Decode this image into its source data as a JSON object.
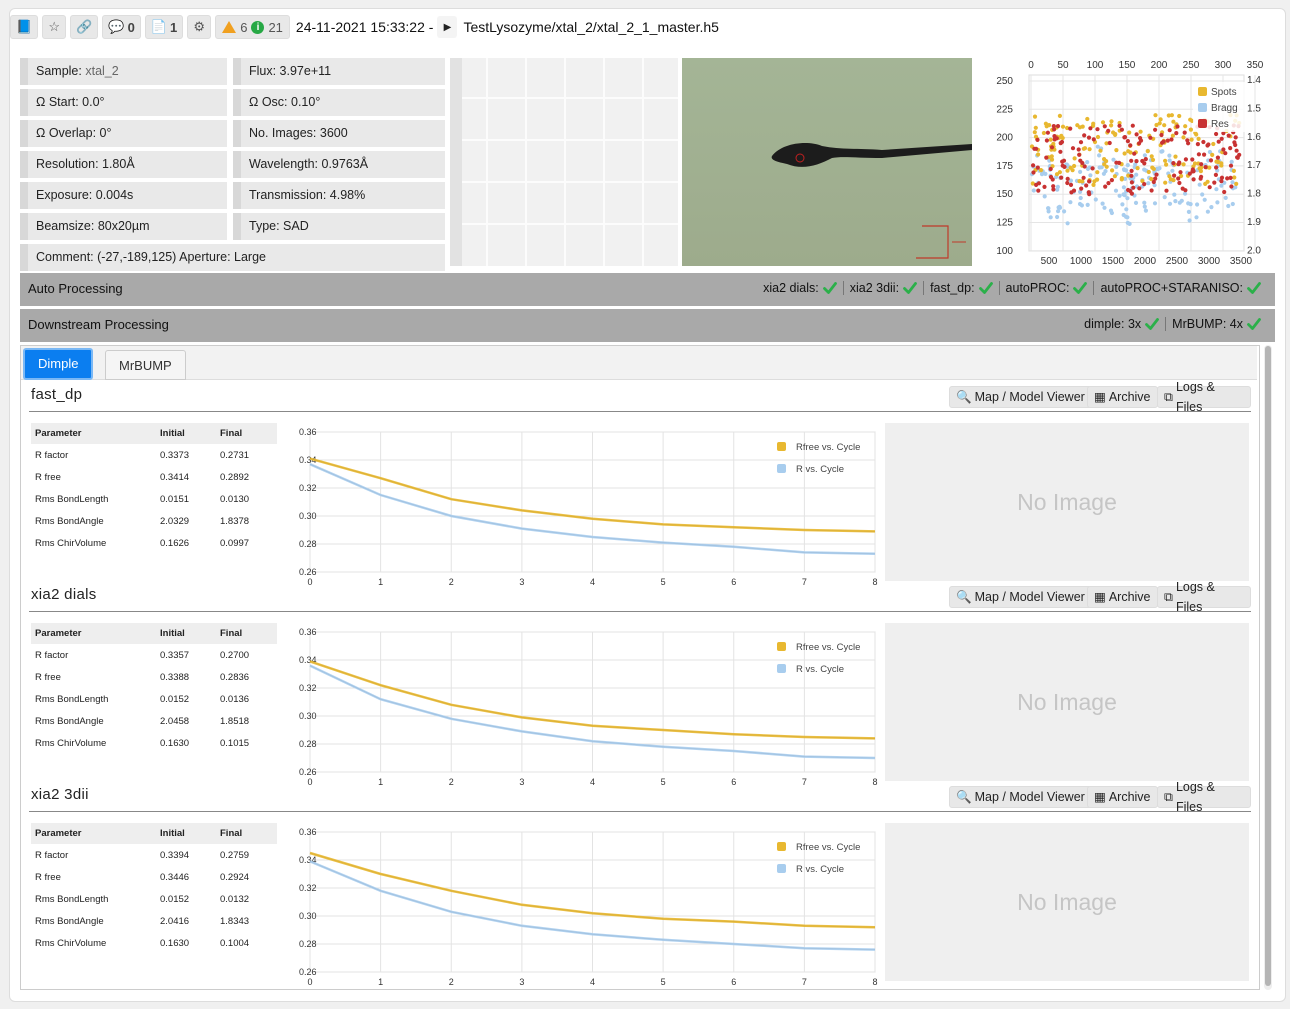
{
  "topbar": {
    "comments_count": "0",
    "files_count": "1",
    "warning_count": "6",
    "info_count": "21",
    "datetime": "24-11-2021 15:33:22 -",
    "path": "TestLysozyme/xtal_2/xtal_2_1_master.h5"
  },
  "info": {
    "sample_label": "Sample:",
    "sample_value": "xtal_2",
    "flux": "Flux: 3.97e+11",
    "omega_start": "Ω Start: 0.0°",
    "omega_osc": "Ω Osc: 0.10°",
    "omega_overlap": "Ω Overlap: 0°",
    "no_images": "No. Images: 3600",
    "resolution": "Resolution: 1.80Å",
    "wavelength": "Wavelength: 0.9763Å",
    "exposure": "Exposure: 0.004s",
    "transmission": "Transmission: 4.98%",
    "beamsize": "Beamsize: 80x20µm",
    "type": "Type: SAD",
    "comment": "Comment: (-27,-189,125) Aperture: Large"
  },
  "dc_plot": {
    "top_ticks": [
      "0",
      "50",
      "100",
      "150",
      "200",
      "250",
      "300",
      "350"
    ],
    "bottom_ticks": [
      "500",
      "1000",
      "1500",
      "2000",
      "2500",
      "3000",
      "3500"
    ],
    "left_ticks": [
      "250",
      "225",
      "200",
      "175",
      "150",
      "125",
      "100"
    ],
    "right_ticks": [
      "1.4",
      "1.5",
      "1.6",
      "1.7",
      "1.8",
      "1.9",
      "2.0"
    ],
    "legend": [
      "Spots",
      "Bragg",
      "Res"
    ],
    "colors": {
      "spots": "#e8b830",
      "bragg": "#a8cdee",
      "res": "#c83232"
    }
  },
  "auto_processing": {
    "label": "Auto Processing",
    "items": [
      "xia2 dials:",
      "xia2 3dii:",
      "fast_dp:",
      "autoPROC:",
      "autoPROC+STARANISO:"
    ]
  },
  "downstream": {
    "label": "Downstream Processing",
    "items": [
      "dimple: 3x",
      "MrBUMP: 4x"
    ]
  },
  "tabs": [
    "Dimple",
    "MrBUMP"
  ],
  "buttons": {
    "viewer": "Map / Model Viewer",
    "archive": "Archive",
    "logs": "Logs & Files"
  },
  "table_headers": [
    "Parameter",
    "Initial",
    "Final"
  ],
  "no_image": "No Image",
  "colors": {
    "rfree": "#e8b830",
    "r": "#a8cdee",
    "check": "#2bb04a",
    "tab_active": "#0b7ef0"
  },
  "sections": [
    {
      "title": "fast_dp",
      "rows": [
        [
          "R factor",
          "0.3373",
          "0.2731"
        ],
        [
          "R free",
          "0.3414",
          "0.2892"
        ],
        [
          "Rms BondLength",
          "0.0151",
          "0.0130"
        ],
        [
          "Rms BondAngle",
          "2.0329",
          "1.8378"
        ],
        [
          "Rms ChirVolume",
          "0.1626",
          "0.0997"
        ]
      ],
      "chart_data": {
        "type": "line",
        "x": [
          0,
          1,
          2,
          3,
          4,
          5,
          6,
          7,
          8
        ],
        "ylim": [
          0.26,
          0.36
        ],
        "yticks": [
          "0.36",
          "0.34",
          "0.32",
          "0.30",
          "0.28",
          "0.26"
        ],
        "xticks": [
          "0",
          "1",
          "2",
          "3",
          "4",
          "5",
          "6",
          "7",
          "8"
        ],
        "series": [
          {
            "name": "Rfree vs. Cycle",
            "values": [
              0.341,
              0.327,
              0.312,
              0.304,
              0.298,
              0.294,
              0.292,
              0.29,
              0.289
            ]
          },
          {
            "name": "R vs. Cycle",
            "values": [
              0.337,
              0.315,
              0.3,
              0.291,
              0.285,
              0.281,
              0.278,
              0.274,
              0.273
            ]
          }
        ]
      }
    },
    {
      "title": "xia2 dials",
      "rows": [
        [
          "R factor",
          "0.3357",
          "0.2700"
        ],
        [
          "R free",
          "0.3388",
          "0.2836"
        ],
        [
          "Rms BondLength",
          "0.0152",
          "0.0136"
        ],
        [
          "Rms BondAngle",
          "2.0458",
          "1.8518"
        ],
        [
          "Rms ChirVolume",
          "0.1630",
          "0.1015"
        ]
      ],
      "chart_data": {
        "type": "line",
        "x": [
          0,
          1,
          2,
          3,
          4,
          5,
          6,
          7,
          8
        ],
        "ylim": [
          0.26,
          0.36
        ],
        "yticks": [
          "0.36",
          "0.34",
          "0.32",
          "0.30",
          "0.28",
          "0.26"
        ],
        "xticks": [
          "0",
          "1",
          "2",
          "3",
          "4",
          "5",
          "6",
          "7",
          "8"
        ],
        "series": [
          {
            "name": "Rfree vs. Cycle",
            "values": [
              0.339,
              0.322,
              0.308,
              0.299,
              0.293,
              0.29,
              0.287,
              0.285,
              0.284
            ]
          },
          {
            "name": "R vs. Cycle",
            "values": [
              0.336,
              0.312,
              0.298,
              0.289,
              0.282,
              0.278,
              0.275,
              0.271,
              0.27
            ]
          }
        ]
      }
    },
    {
      "title": "xia2 3dii",
      "rows": [
        [
          "R factor",
          "0.3394",
          "0.2759"
        ],
        [
          "R free",
          "0.3446",
          "0.2924"
        ],
        [
          "Rms BondLength",
          "0.0152",
          "0.0132"
        ],
        [
          "Rms BondAngle",
          "2.0416",
          "1.8343"
        ],
        [
          "Rms ChirVolume",
          "0.1630",
          "0.1004"
        ]
      ],
      "chart_data": {
        "type": "line",
        "x": [
          0,
          1,
          2,
          3,
          4,
          5,
          6,
          7,
          8
        ],
        "ylim": [
          0.26,
          0.36
        ],
        "yticks": [
          "0.36",
          "0.34",
          "0.32",
          "0.30",
          "0.28",
          "0.26"
        ],
        "xticks": [
          "0",
          "1",
          "2",
          "3",
          "4",
          "5",
          "6",
          "7",
          "8"
        ],
        "series": [
          {
            "name": "Rfree vs. Cycle",
            "values": [
              0.345,
              0.33,
              0.318,
              0.308,
              0.302,
              0.298,
              0.296,
              0.293,
              0.292
            ]
          },
          {
            "name": "R vs. Cycle",
            "values": [
              0.339,
              0.318,
              0.303,
              0.293,
              0.287,
              0.283,
              0.28,
              0.277,
              0.276
            ]
          }
        ]
      }
    }
  ]
}
